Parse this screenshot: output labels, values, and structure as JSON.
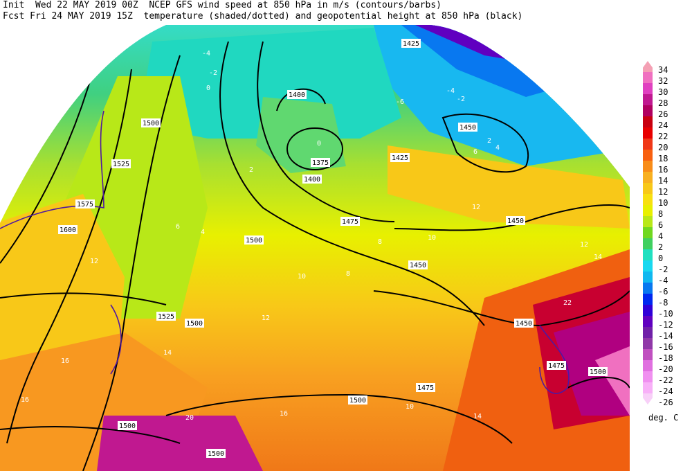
{
  "header": {
    "line1_left": "Init  Wed 22 MAY 2019 00Z",
    "line1_right": "NCEP GFS wind speed at 850 hPa in m/s (contours/barbs)",
    "line2_left": "Fcst Fri 24 MAY 2019 15Z",
    "line2_right": "temperature (shaded/dotted) and geopotential height at 850 hPa (black)"
  },
  "scale": {
    "labels": [
      "34",
      "32",
      "30",
      "28",
      "26",
      "24",
      "22",
      "20",
      "18",
      "16",
      "14",
      "12",
      "10",
      "8",
      "6",
      "4",
      "2",
      "0",
      "-2",
      "-4",
      "-6",
      "-8",
      "-10",
      "-12",
      "-14",
      "-16",
      "-18",
      "-20",
      "-22",
      "-24",
      "-26"
    ],
    "colors": [
      "#f4a0b4",
      "#f070c0",
      "#e040c0",
      "#c01890",
      "#b00060",
      "#c80010",
      "#e80000",
      "#f03818",
      "#f86010",
      "#f88c18",
      "#f8b020",
      "#f8c818",
      "#f8e010",
      "#e8f000",
      "#b8e818",
      "#70d820",
      "#40d060",
      "#20e0c0",
      "#18d8f0",
      "#10b8f0",
      "#0878f0",
      "#0028f0",
      "#3000d8",
      "#6000c0",
      "#7020a8",
      "#9038a8",
      "#c050c0",
      "#e070e0",
      "#f090f0",
      "#f8b0f8",
      "#f8d0f8"
    ],
    "unit": "deg. C"
  },
  "map": {
    "height_labels": [
      "1425",
      "1400",
      "1450",
      "1375",
      "1400",
      "1425",
      "1500",
      "1525",
      "1575",
      "1600",
      "1500",
      "1475",
      "1450",
      "1450",
      "1525",
      "1500",
      "1450",
      "1475",
      "1500",
      "1475",
      "1500",
      "1500",
      "1500"
    ],
    "temp_labels": [
      "-4",
      "-2",
      "0",
      "-4",
      "-2",
      "-6",
      "2",
      "6",
      "4",
      "2",
      "0",
      "4",
      "6",
      "8",
      "10",
      "12",
      "14",
      "16",
      "12",
      "8",
      "10",
      "12",
      "14",
      "16",
      "20",
      "22",
      "16",
      "14",
      "12",
      "10"
    ]
  }
}
